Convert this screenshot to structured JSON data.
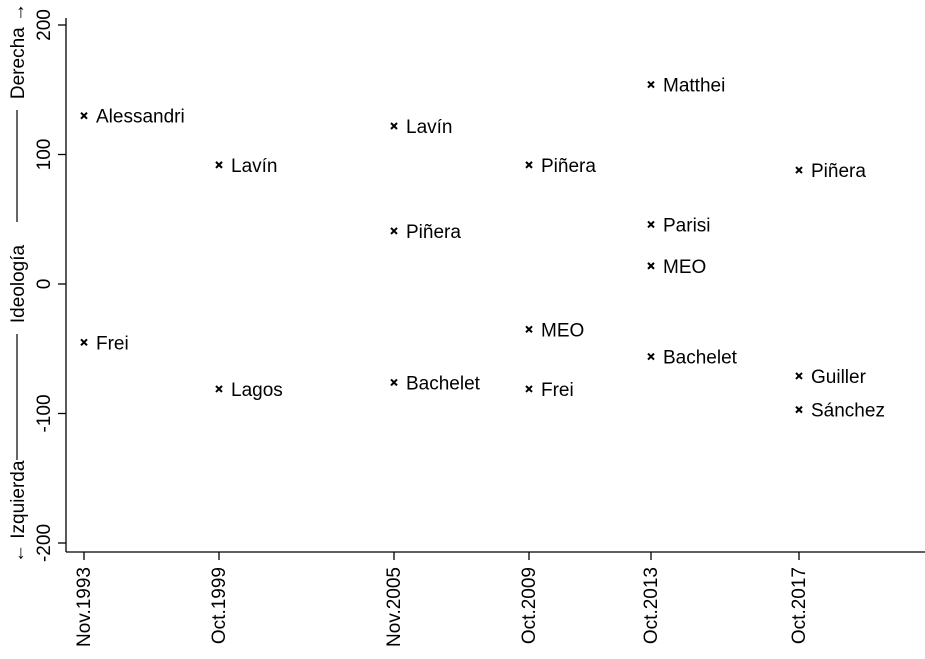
{
  "chart_data": {
    "type": "scatter",
    "title": "",
    "xlabel": "",
    "ylabel": {
      "lower": "← Izquierda",
      "middle": "Ideología",
      "upper": "Derecha →"
    },
    "ylim": [
      -200,
      200
    ],
    "yticks": [
      -200,
      -100,
      0,
      100,
      200
    ],
    "ytick_labels": [
      "-200",
      "-100",
      "0",
      "100",
      "200"
    ],
    "x_categories": [
      "Nov.1993",
      "Oct.1999",
      "Nov.2005",
      "Oct.2009",
      "Oct.2013",
      "Oct.2017"
    ],
    "x_dates": [
      "1993-11",
      "1999-10",
      "2005-11",
      "2009-10",
      "2013-10",
      "2017-10"
    ],
    "grid": false,
    "legend": "none",
    "marker": "x",
    "points": [
      {
        "x": "Nov.1993",
        "y": 130,
        "label": "Alessandri"
      },
      {
        "x": "Nov.1993",
        "y": -45,
        "label": "Frei"
      },
      {
        "x": "Oct.1999",
        "y": 92,
        "label": "Lavín"
      },
      {
        "x": "Oct.1999",
        "y": -81,
        "label": "Lagos"
      },
      {
        "x": "Nov.2005",
        "y": 122,
        "label": "Lavín"
      },
      {
        "x": "Nov.2005",
        "y": 41,
        "label": "Piñera"
      },
      {
        "x": "Nov.2005",
        "y": -76,
        "label": "Bachelet"
      },
      {
        "x": "Oct.2009",
        "y": 92,
        "label": "Piñera"
      },
      {
        "x": "Oct.2009",
        "y": -35,
        "label": "MEO"
      },
      {
        "x": "Oct.2009",
        "y": -81,
        "label": "Frei"
      },
      {
        "x": "Oct.2013",
        "y": 154,
        "label": "Matthei"
      },
      {
        "x": "Oct.2013",
        "y": 46,
        "label": "Parisi"
      },
      {
        "x": "Oct.2013",
        "y": 14,
        "label": "MEO"
      },
      {
        "x": "Oct.2013",
        "y": -56,
        "label": "Bachelet"
      },
      {
        "x": "Oct.2017",
        "y": 88,
        "label": "Piñera"
      },
      {
        "x": "Oct.2017",
        "y": -71,
        "label": "Guiller"
      },
      {
        "x": "Oct.2017",
        "y": -97,
        "label": "Sánchez"
      }
    ]
  }
}
